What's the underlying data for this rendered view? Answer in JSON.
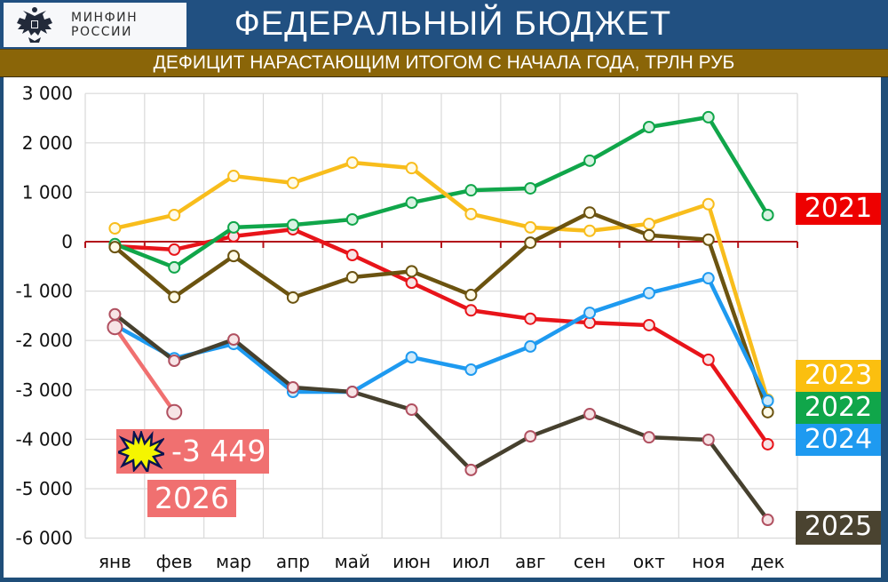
{
  "header": {
    "logo_line1": "МИНФИН",
    "logo_line2": "РОССИИ",
    "logo_icon": "double-headed-eagle-emblem",
    "title": "ФЕДЕРАЛЬНЫЙ БЮДЖЕТ",
    "subtitle": "ДЕФИЦИТ НАРАСТАЮЩИМ ИТОГОМ С НАЧАЛА ГОДА, ТРЛН РУБ"
  },
  "colors": {
    "header_bg": "#215081",
    "subtitle_bg": "#8a6508",
    "zero_line": "#b3121a",
    "grid": "#d9d9d9"
  },
  "annotation": {
    "icon": "explosion-burst-icon",
    "value": "-3 449",
    "year": "2026",
    "color": "#f07070"
  },
  "legend_boxes": [
    {
      "label": "2021",
      "color": "#ee0000"
    },
    {
      "label": "2023",
      "color": "#fbbf0f"
    },
    {
      "label": "2022",
      "color": "#10a64a"
    },
    {
      "label": "2024",
      "color": "#1e9af0"
    },
    {
      "label": "2025",
      "color": "#4a4330"
    }
  ],
  "chart_data": {
    "type": "line",
    "title": "ФЕДЕРАЛЬНЫЙ БЮДЖЕТ — ДЕФИЦИТ НАРАСТАЮЩИМ ИТОГОМ С НАЧАЛА ГОДА, ТРЛН РУБ",
    "xlabel": "",
    "ylabel": "",
    "categories": [
      "янв",
      "фев",
      "мар",
      "апр",
      "май",
      "июн",
      "июл",
      "авг",
      "сен",
      "окт",
      "ноя",
      "дек"
    ],
    "yticks": [
      3000,
      2000,
      1000,
      0,
      -1000,
      -2000,
      -3000,
      -4000,
      -5000,
      -6000
    ],
    "ytick_labels": [
      "3 000",
      "2 000",
      "1 000",
      "0",
      "-1 000",
      "-2 000",
      "-3 000",
      "-4 000",
      "-5 000",
      "-6 000"
    ],
    "ylim": [
      -6000,
      3000
    ],
    "grid": true,
    "legend_position": "right, boxes at line endpoints",
    "series": [
      {
        "name": "red line",
        "color": "#e8141a",
        "values": [
          -90,
          -160,
          110,
          250,
          -270,
          -830,
          -1390,
          -1560,
          -1640,
          -1690,
          -2390,
          -4100
        ]
      },
      {
        "name": "green line",
        "color": "#10a64a",
        "values": [
          -50,
          -520,
          290,
          340,
          450,
          790,
          1040,
          1080,
          1640,
          2320,
          2520,
          540
        ]
      },
      {
        "name": "yellow line",
        "color": "#f8bd1c",
        "values": [
          270,
          540,
          1330,
          1190,
          1600,
          1490,
          560,
          290,
          220,
          360,
          760,
          -3200
        ]
      },
      {
        "name": "olive-brown line",
        "color": "#6b5310",
        "values": [
          -110,
          -1120,
          -290,
          -1130,
          -720,
          -600,
          -1080,
          -20,
          590,
          130,
          40,
          -3450
        ]
      },
      {
        "name": "blue line",
        "color": "#1e9af0",
        "values": [
          -1690,
          -2360,
          -2070,
          -3040,
          -3040,
          -2340,
          -2590,
          -2120,
          -1440,
          -1040,
          -740,
          -3220
        ]
      },
      {
        "name": "2025",
        "color": "#46402e",
        "values": [
          -1470,
          -2410,
          -1980,
          -2950,
          -3040,
          -3400,
          -4620,
          -3940,
          -3490,
          -3960,
          -4010,
          -5630
        ]
      },
      {
        "name": "2026",
        "color": "#f07070",
        "values": [
          -1730,
          -3449,
          null,
          null,
          null,
          null,
          null,
          null,
          null,
          null,
          null,
          null
        ]
      }
    ],
    "annotations": [
      {
        "text": "-3 449",
        "target": "2026 фев"
      },
      {
        "text": "2026"
      },
      {
        "text": "2021"
      },
      {
        "text": "2023"
      },
      {
        "text": "2022"
      },
      {
        "text": "2024"
      },
      {
        "text": "2025"
      }
    ]
  }
}
